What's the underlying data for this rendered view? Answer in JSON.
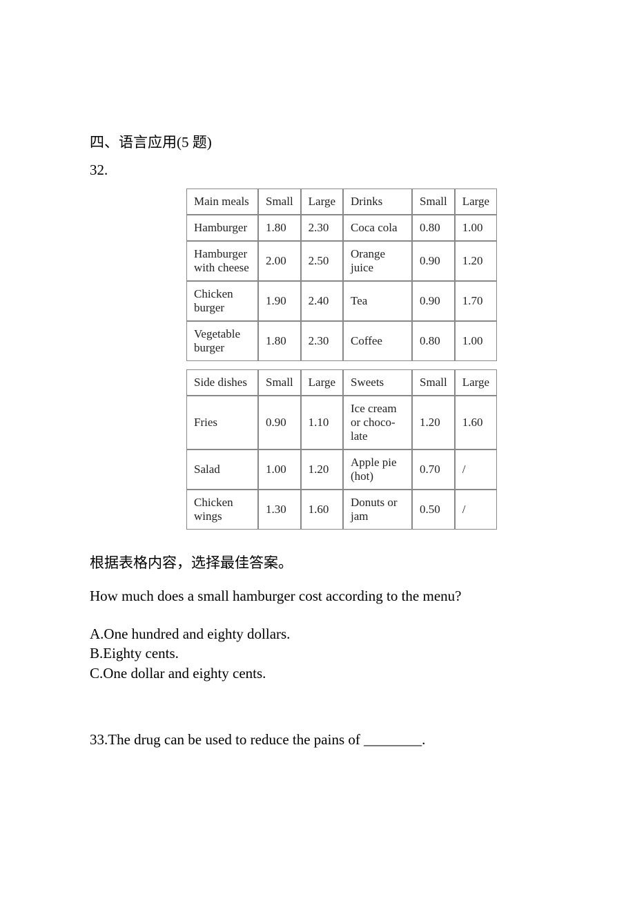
{
  "section": {
    "header": "四、语言应用(5 题)",
    "q32_num": "32."
  },
  "table1": {
    "headers": [
      "Main meals",
      "Small",
      "Large",
      "Drinks",
      "Small",
      "Large"
    ],
    "rows": [
      [
        "Hamburger",
        "1.80",
        "2.30",
        "Coca cola",
        "0.80",
        "1.00"
      ],
      [
        "Hamburger with cheese",
        "2.00",
        "2.50",
        "Orange juice",
        "0.90",
        "1.20"
      ],
      [
        "Chicken burger",
        "1.90",
        "2.40",
        "Tea",
        "0.90",
        "1.70"
      ],
      [
        "Vegetable burger",
        "1.80",
        "2.30",
        "Coffee",
        "0.80",
        "1.00"
      ]
    ],
    "border_color": "#888888",
    "cell_fontsize": 17,
    "text_color": "#222222"
  },
  "table2": {
    "headers": [
      "Side dishes",
      "Small",
      "Large",
      "Sweets",
      "Small",
      "Large"
    ],
    "rows": [
      [
        "Fries",
        "0.90",
        "1.10",
        "Ice cream or choco-late",
        "1.20",
        "1.60"
      ],
      [
        "Salad",
        "1.00",
        "1.20",
        "Apple pie (hot)",
        "0.70",
        "/"
      ],
      [
        "Chicken wings",
        "1.30",
        "1.60",
        "Donuts or jam",
        "0.50",
        "/"
      ]
    ],
    "border_color": "#888888",
    "cell_fontsize": 17,
    "text_color": "#222222"
  },
  "q32": {
    "instructions": "根据表格内容，选择最佳答案。",
    "question": "How much does a small hamburger cost according to the menu?",
    "optA": "A.One hundred and eighty dollars.",
    "optB": "B.Eighty cents.",
    "optC": "C.One dollar and eighty cents."
  },
  "q33": {
    "text": "33.The drug can be used to reduce the pains of ________."
  },
  "style": {
    "body_bg": "#ffffff",
    "section_fontsize": 21,
    "section_color": "#000000"
  }
}
